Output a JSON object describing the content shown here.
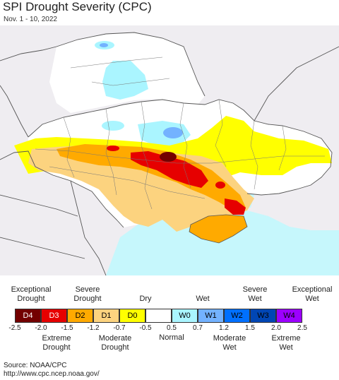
{
  "title": "SPI Drought Severity (CPC)",
  "subtitle": "Nov. 1 - 10, 2022",
  "legend": {
    "top_labels": [
      {
        "text": "Exceptional\nDrought",
        "key": "exceptional_drought"
      },
      {
        "text": "Severe\nDrought",
        "key": "severe_drought"
      },
      {
        "text": "Dry",
        "key": "dry"
      },
      {
        "text": "Wet",
        "key": "wet"
      },
      {
        "text": "Severe\nWet",
        "key": "severe_wet"
      },
      {
        "text": "Exceptional\nWet",
        "key": "exceptional_wet"
      }
    ],
    "categories": [
      {
        "code": "D4",
        "color": "#730000",
        "text_color": "#ffffff"
      },
      {
        "code": "D3",
        "color": "#e60000",
        "text_color": "#ffffff"
      },
      {
        "code": "D2",
        "color": "#ffaa00",
        "text_color": "#000000"
      },
      {
        "code": "D1",
        "color": "#fcd37f",
        "text_color": "#000000"
      },
      {
        "code": "D0",
        "color": "#ffff00",
        "text_color": "#000000"
      },
      {
        "code": "",
        "color": "#ffffff",
        "text_color": "#000000"
      },
      {
        "code": "W0",
        "color": "#aaf5ff",
        "text_color": "#000000"
      },
      {
        "code": "W1",
        "color": "#73b2ff",
        "text_color": "#000000"
      },
      {
        "code": "W2",
        "color": "#0070ff",
        "text_color": "#000000"
      },
      {
        "code": "W3",
        "color": "#0046b4",
        "text_color": "#000000"
      },
      {
        "code": "W4",
        "color": "#9c00ff",
        "text_color": "#000000"
      }
    ],
    "ticks": [
      "-2.5",
      "-2.0",
      "-1.5",
      "-1.2",
      "-0.7",
      "-0.5",
      "0.5",
      "0.7",
      "1.2",
      "1.5",
      "2.0",
      "2.5"
    ],
    "bottom_labels": [
      {
        "text": "Extreme\nDrought"
      },
      {
        "text": "Moderate\nDrought"
      },
      {
        "text": "Normal"
      },
      {
        "text": "Moderate\nWet"
      },
      {
        "text": "Extreme\nWet"
      }
    ]
  },
  "source": {
    "line1": "Source: NOAA/CPC",
    "line2": "http://www.cpc.ncep.noaa.gov/"
  },
  "colors": {
    "land": "#f0eef2",
    "sea": "#c6f7fc",
    "border": "#555555"
  }
}
